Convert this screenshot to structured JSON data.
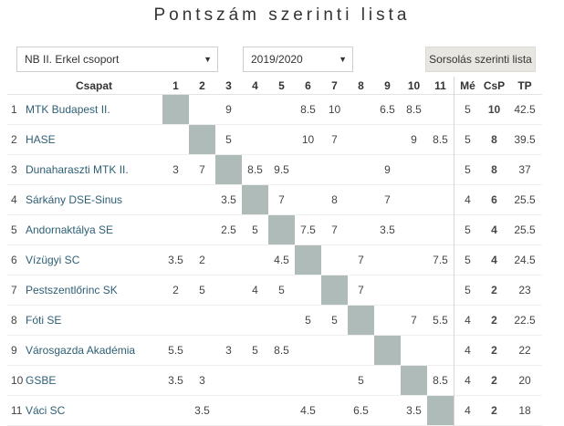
{
  "title": "Pontszám szerinti lista",
  "filters": {
    "group": "NB II. Erkel csoport",
    "season": "2019/2020",
    "draw_button": "Sorsolás szerinti lista"
  },
  "table": {
    "headers": {
      "team": "Csapat",
      "rounds": [
        "1",
        "2",
        "3",
        "4",
        "5",
        "6",
        "7",
        "8",
        "9",
        "10",
        "11"
      ],
      "played": "Mé",
      "csp": "CsP",
      "tp": "TP"
    },
    "rows": [
      {
        "rank": "1",
        "team": "MTK Budapest II.",
        "results": [
          "",
          "",
          "9",
          "",
          "",
          "8.5",
          "10",
          "",
          "6.5",
          "8.5",
          ""
        ],
        "played": "5",
        "csp": "10",
        "tp": "42.5"
      },
      {
        "rank": "2",
        "team": "HASE",
        "results": [
          "",
          "",
          "5",
          "",
          "",
          "10",
          "7",
          "",
          "",
          "9",
          "8.5"
        ],
        "played": "5",
        "csp": "8",
        "tp": "39.5"
      },
      {
        "rank": "3",
        "team": "Dunaharaszti MTK II.",
        "results": [
          "3",
          "7",
          "",
          "8.5",
          "9.5",
          "",
          "",
          "",
          "9",
          "",
          ""
        ],
        "played": "5",
        "csp": "8",
        "tp": "37"
      },
      {
        "rank": "4",
        "team": "Sárkány DSE-Sinus",
        "results": [
          "",
          "",
          "3.5",
          "",
          "7",
          "",
          "8",
          "",
          "7",
          "",
          ""
        ],
        "played": "4",
        "csp": "6",
        "tp": "25.5"
      },
      {
        "rank": "5",
        "team": "Andornaktálya SE",
        "results": [
          "",
          "",
          "2.5",
          "5",
          "",
          "7.5",
          "7",
          "",
          "3.5",
          "",
          ""
        ],
        "played": "5",
        "csp": "4",
        "tp": "25.5"
      },
      {
        "rank": "6",
        "team": "Vízügyi SC",
        "results": [
          "3.5",
          "2",
          "",
          "",
          "4.5",
          "",
          "",
          "7",
          "",
          "",
          "7.5"
        ],
        "played": "5",
        "csp": "4",
        "tp": "24.5"
      },
      {
        "rank": "7",
        "team": "Pestszentlőrinc SK",
        "results": [
          "2",
          "5",
          "",
          "4",
          "5",
          "",
          "",
          "7",
          "",
          "",
          ""
        ],
        "played": "5",
        "csp": "2",
        "tp": "23"
      },
      {
        "rank": "8",
        "team": "Fóti SE",
        "results": [
          "",
          "",
          "",
          "",
          "",
          "5",
          "5",
          "",
          "",
          "7",
          "5.5"
        ],
        "played": "4",
        "csp": "2",
        "tp": "22.5"
      },
      {
        "rank": "9",
        "team": "Városgazda Akadémia",
        "results": [
          "5.5",
          "",
          "3",
          "5",
          "8.5",
          "",
          "",
          "",
          "",
          "",
          ""
        ],
        "played": "4",
        "csp": "2",
        "tp": "22"
      },
      {
        "rank": "10",
        "team": "GSBE",
        "results": [
          "3.5",
          "3",
          "",
          "",
          "",
          "",
          "",
          "5",
          "",
          "",
          "8.5"
        ],
        "played": "4",
        "csp": "2",
        "tp": "20"
      },
      {
        "rank": "11",
        "team": "Váci SC",
        "results": [
          "",
          "3.5",
          "",
          "",
          "",
          "4.5",
          "",
          "6.5",
          "",
          "3.5",
          ""
        ],
        "played": "4",
        "csp": "2",
        "tp": "18"
      }
    ]
  },
  "colors": {
    "diagonal": "#aebbb8",
    "team_link": "#2e5f74",
    "button_bg": "#e8e6e0"
  }
}
